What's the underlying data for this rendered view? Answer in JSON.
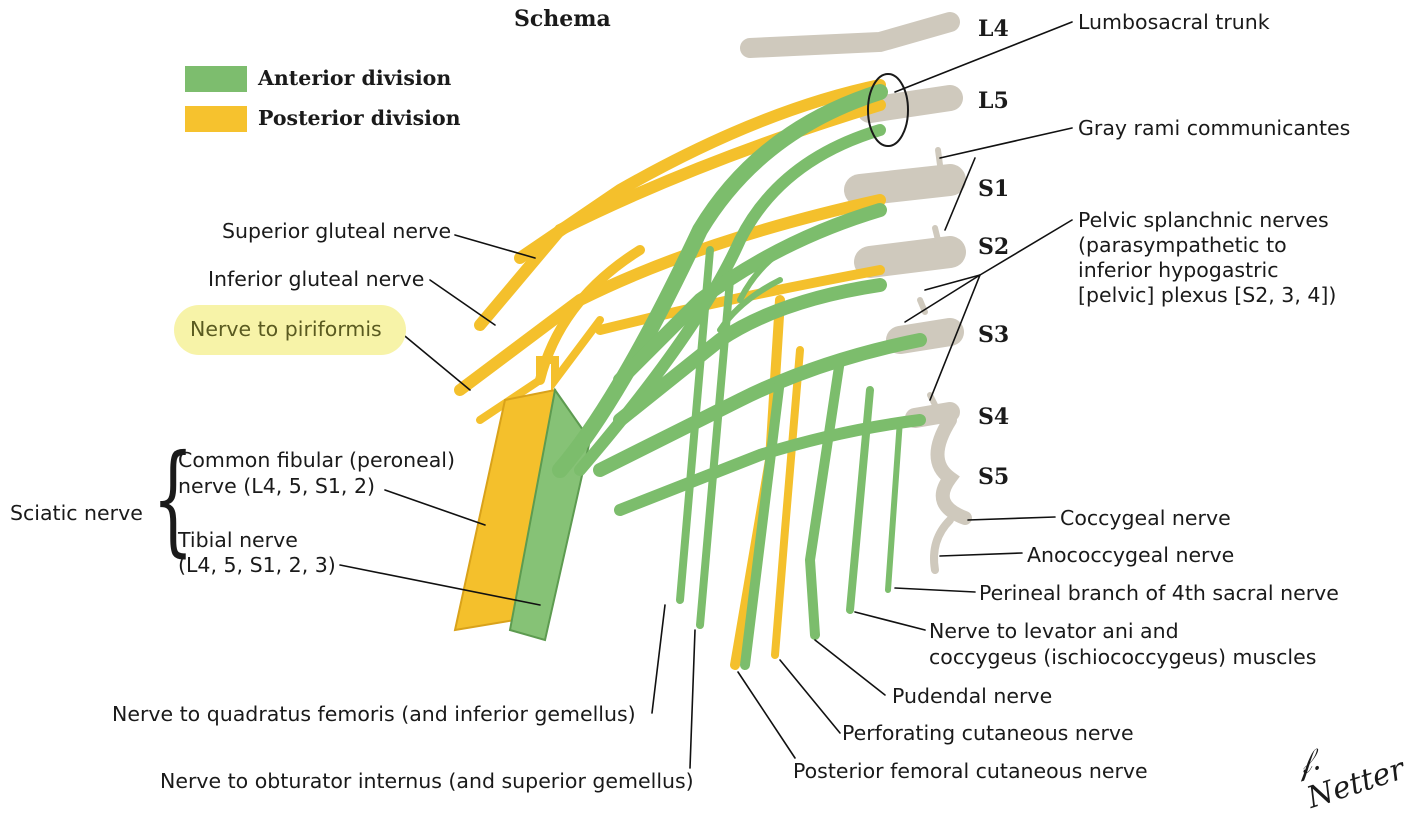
{
  "title": "Schema",
  "legend": [
    {
      "label": "Anterior division",
      "color": "#7dbd6e"
    },
    {
      "label": "Posterior division",
      "color": "#f6c22e"
    }
  ],
  "roots": [
    "L4",
    "L5",
    "S1",
    "S2",
    "S3",
    "S4",
    "S5"
  ],
  "labels": {
    "lumbosacral_trunk": "Lumbosacral trunk",
    "gray_rami": "Gray rami communicantes",
    "pelvic_splanchnic": [
      "Pelvic splanchnic nerves",
      "(parasympathetic to",
      "inferior hypogastric",
      "[pelvic] plexus [S2, 3, 4])"
    ],
    "superior_gluteal": "Superior gluteal nerve",
    "inferior_gluteal": "Inferior gluteal nerve",
    "nerve_to_piriformis": "Nerve to piriformis",
    "sciatic": "Sciatic nerve",
    "common_fibular": [
      "Common fibular (peroneal)",
      "nerve (L4, 5, S1, 2)"
    ],
    "tibial": [
      "Tibial nerve",
      "(L4, 5, S1, 2, 3)"
    ],
    "coccygeal": "Coccygeal nerve",
    "anococcygeal": "Anococcygeal nerve",
    "perineal_branch": "Perineal branch of 4th sacral nerve",
    "levator_ani": [
      "Nerve to levator ani and",
      "coccygeus (ischiococcygeus) muscles"
    ],
    "pudendal": "Pudendal nerve",
    "perforating_cutaneous": "Perforating cutaneous nerve",
    "posterior_femoral_cutaneous": "Posterior femoral cutaneous nerve",
    "quadratus_femoris": "Nerve to quadratus femoris (and inferior gemellus)",
    "obturator_internus": "Nerve to obturator internus (and superior gemellus)"
  },
  "signature": "F. Netter M.D.",
  "colors": {
    "anterior": "#7dbd6e",
    "posterior": "#f6c22e",
    "root": "#cdc8bd",
    "highlight": "#f7f3a8"
  }
}
